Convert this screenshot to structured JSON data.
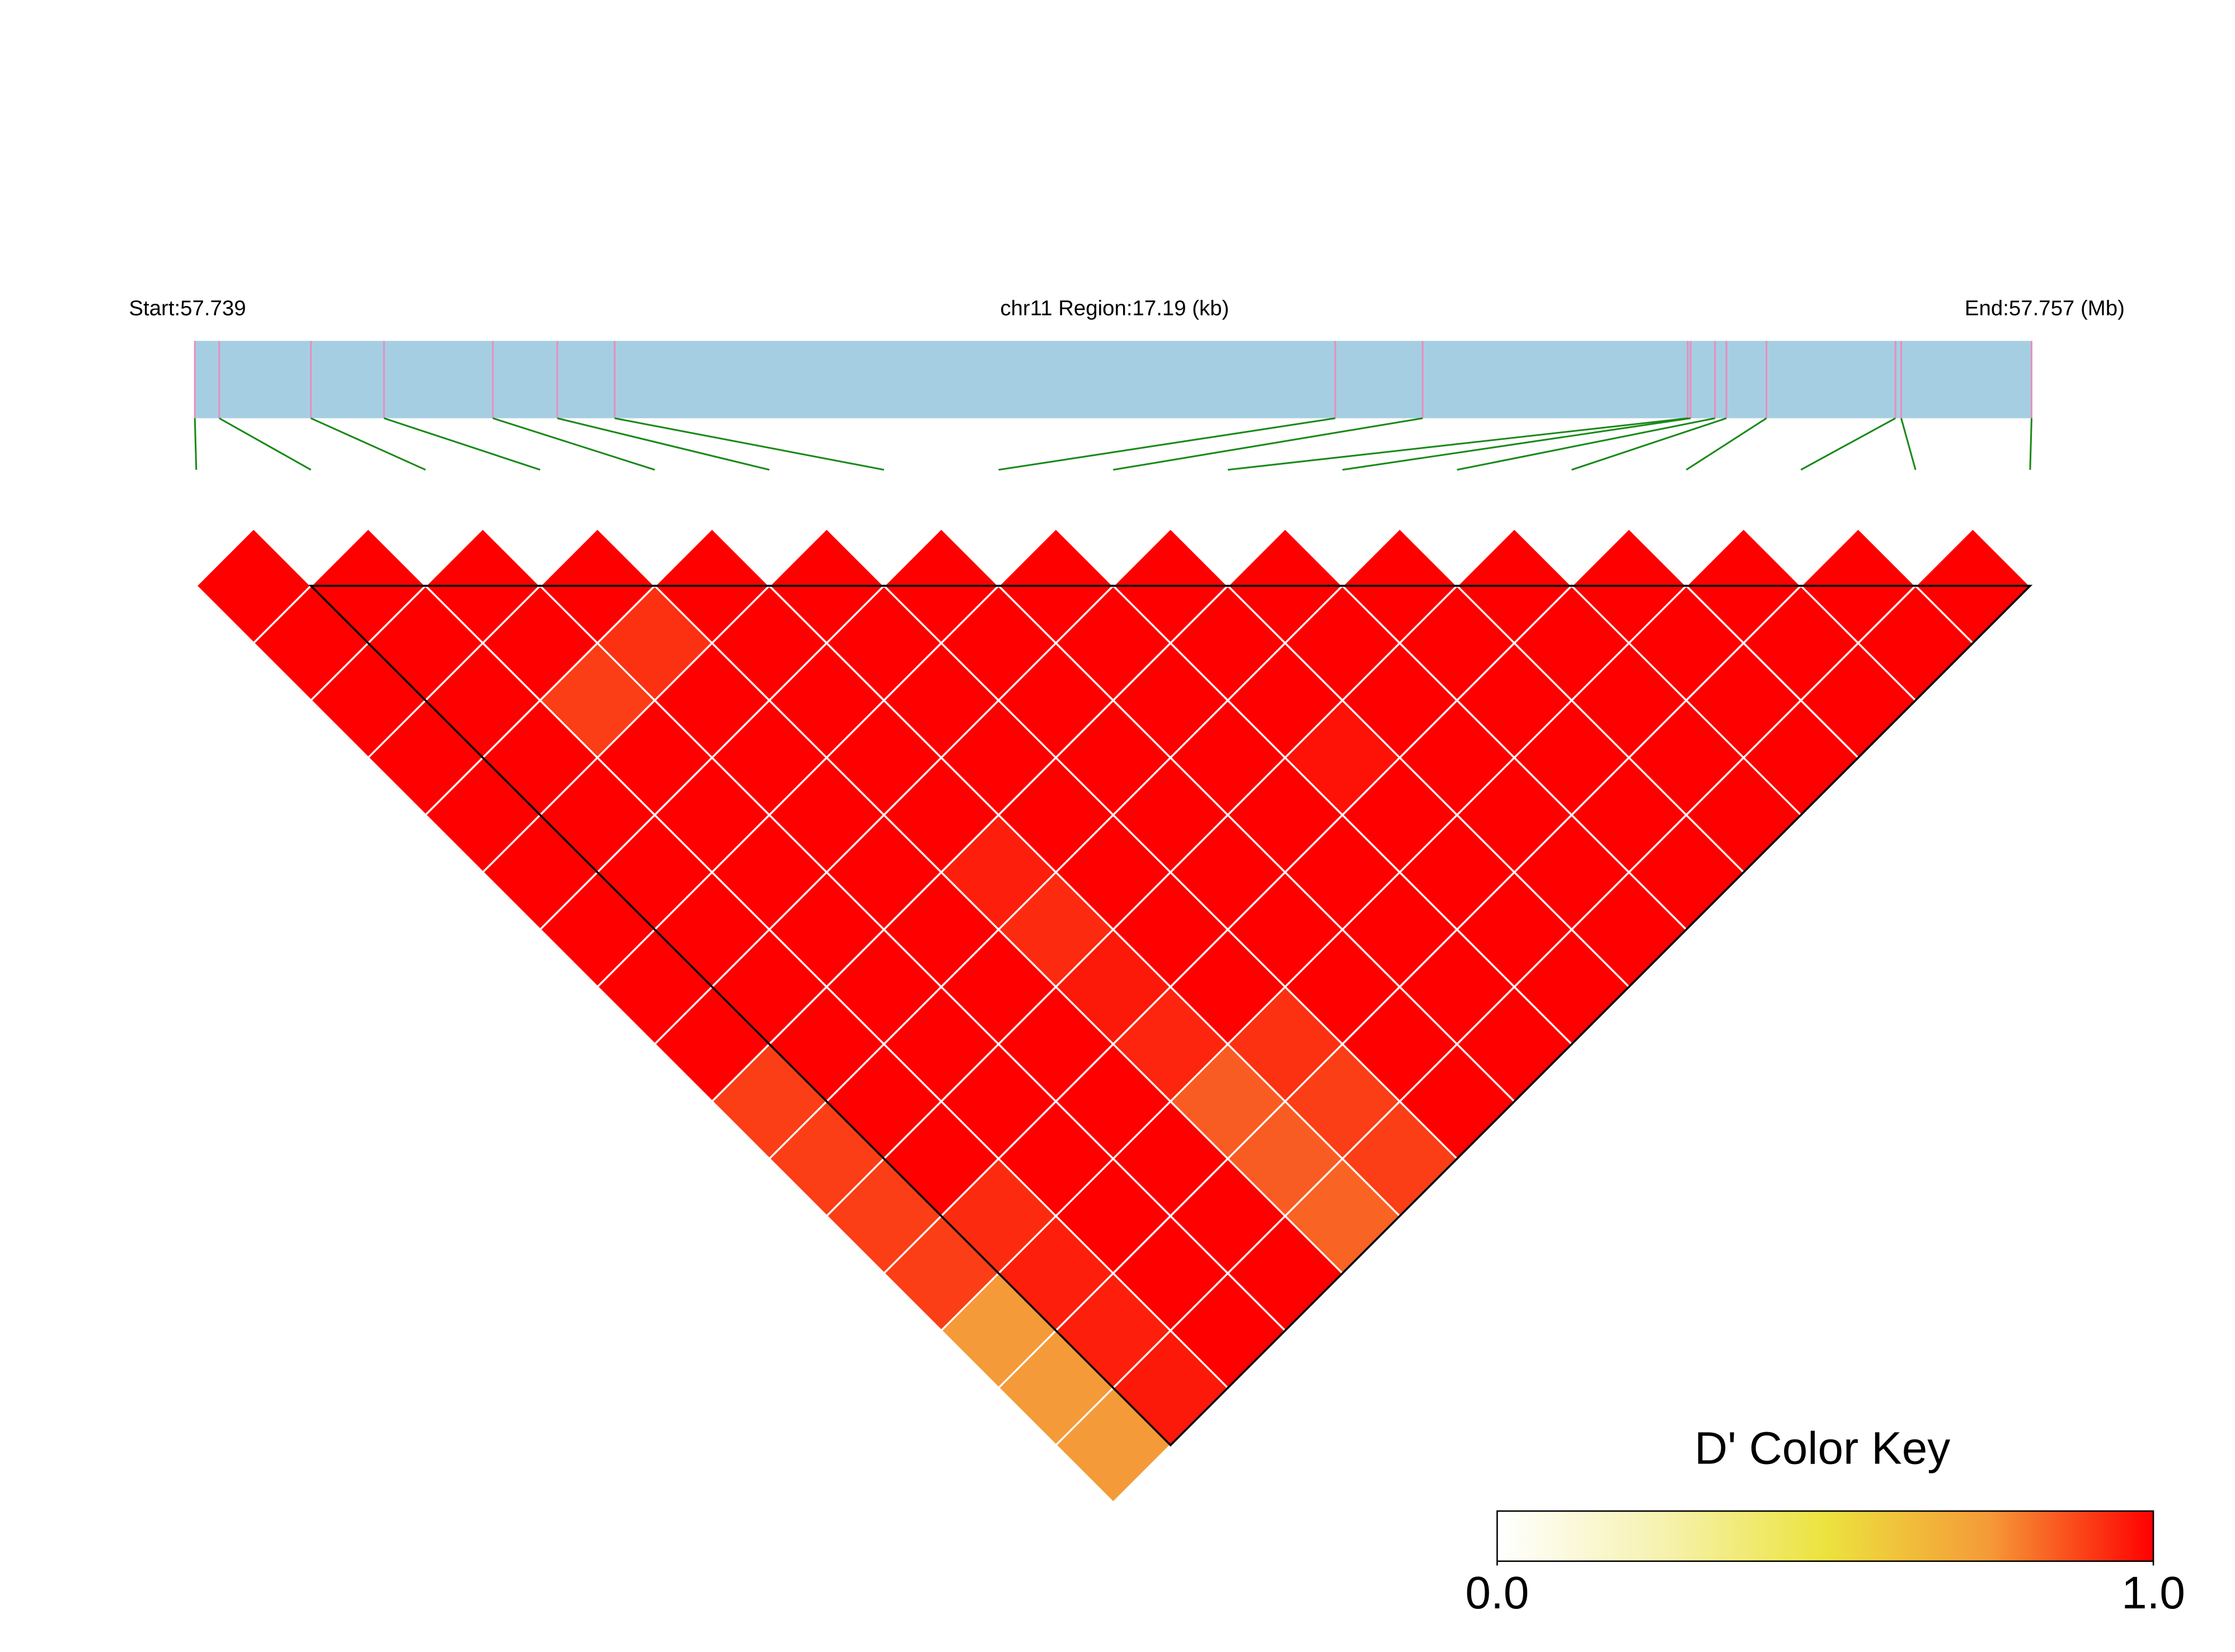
{
  "chart_data": {
    "type": "ld-heatmap",
    "start_label": "Start:57.739",
    "region_label": "chr11 Region:17.19 (kb)",
    "end_label": "End:57.757 (Mb)",
    "xlim": [
      0,
      17.19
    ],
    "snp_positions": [
      0,
      0.228,
      1.086,
      1.77,
      2.789,
      3.392,
      3.929,
      10.673,
      11.491,
      13.972,
      13.999,
      14.227,
      14.334,
      14.709,
      15.916,
      15.97,
      17.19
    ],
    "bar_color": "#a6cee3",
    "snp_line_color": "#e78fbd",
    "link_color": "#1a8a1a",
    "dprime": [
      [
        1,
        1,
        1,
        1,
        1,
        1,
        1,
        1,
        1,
        0.9,
        0.9,
        0.9,
        0.9,
        0.75,
        0.75,
        0.75
      ],
      [
        1,
        1,
        1,
        1,
        1,
        1,
        1,
        1,
        1,
        1,
        1,
        0.93,
        0.95,
        0.95,
        0.96
      ],
      [
        1,
        1,
        0.9,
        1,
        1,
        1,
        1,
        1,
        1,
        1,
        1,
        1,
        1,
        1
      ],
      [
        1,
        0.92,
        1,
        1,
        1,
        1,
        1,
        1,
        1,
        1,
        1,
        1,
        1
      ],
      [
        1,
        1,
        1,
        1,
        1,
        0.95,
        0.93,
        0.96,
        0.94,
        0.85,
        0.85,
        0.84
      ],
      [
        1,
        1,
        1,
        1,
        1,
        1,
        1,
        1,
        0.92,
        0.9,
        0.9
      ],
      [
        1,
        1,
        1,
        1,
        1,
        1,
        1,
        1,
        1,
        1
      ],
      [
        1,
        1,
        1,
        1,
        1,
        1,
        1,
        1,
        1
      ],
      [
        1,
        1,
        1,
        0.97,
        1,
        1,
        1,
        1
      ],
      [
        1,
        1,
        1,
        1,
        1,
        1,
        1
      ],
      [
        1,
        1,
        1,
        1,
        1,
        1
      ],
      [
        1,
        1,
        1,
        1,
        1
      ],
      [
        1,
        1,
        1,
        1
      ],
      [
        1,
        1,
        1
      ],
      [
        1,
        1
      ],
      [
        1
      ]
    ],
    "blocks": [
      [
        1,
        16
      ]
    ],
    "block_color": "#000000",
    "color_key": {
      "title": "D' Color Key",
      "lim": [
        0,
        1
      ],
      "colors": [
        "#ffffff",
        "#f6f2b0",
        "#ece33e",
        "#f59a38",
        "#ff0000"
      ],
      "ticks": [
        {
          "value": 0,
          "label": "0.0"
        },
        {
          "value": 1,
          "label": "1.0"
        }
      ]
    }
  }
}
